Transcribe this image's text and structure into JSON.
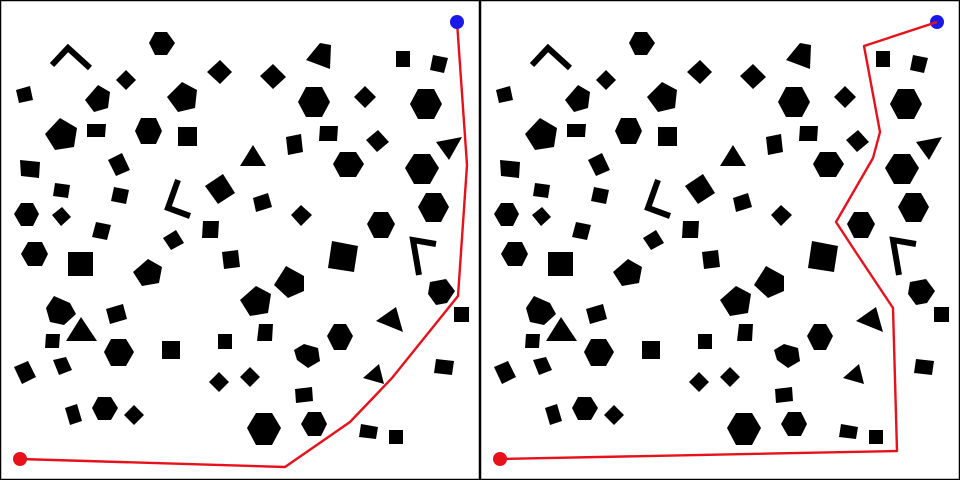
{
  "colors": {
    "background": "#ffffff",
    "border": "#000000",
    "obstacle": "#000000",
    "path": "#e8101a",
    "start": "#e8101a",
    "goal": "#1a1ae8"
  },
  "panels": [
    {
      "id": "left",
      "description_free": true,
      "path_points": [
        [
          20,
          459
        ],
        [
          285,
          467
        ],
        [
          350,
          422
        ],
        [
          392,
          378
        ],
        [
          458,
          296
        ],
        [
          467,
          165
        ],
        [
          457,
          22
        ]
      ]
    },
    {
      "id": "right",
      "description_free": true,
      "path_points": [
        [
          500,
          459
        ],
        [
          897,
          451
        ],
        [
          893,
          308
        ],
        [
          857,
          254
        ],
        [
          836,
          222
        ],
        [
          873,
          158
        ],
        [
          880,
          132
        ],
        [
          864,
          46
        ],
        [
          937,
          22
        ]
      ]
    }
  ]
}
